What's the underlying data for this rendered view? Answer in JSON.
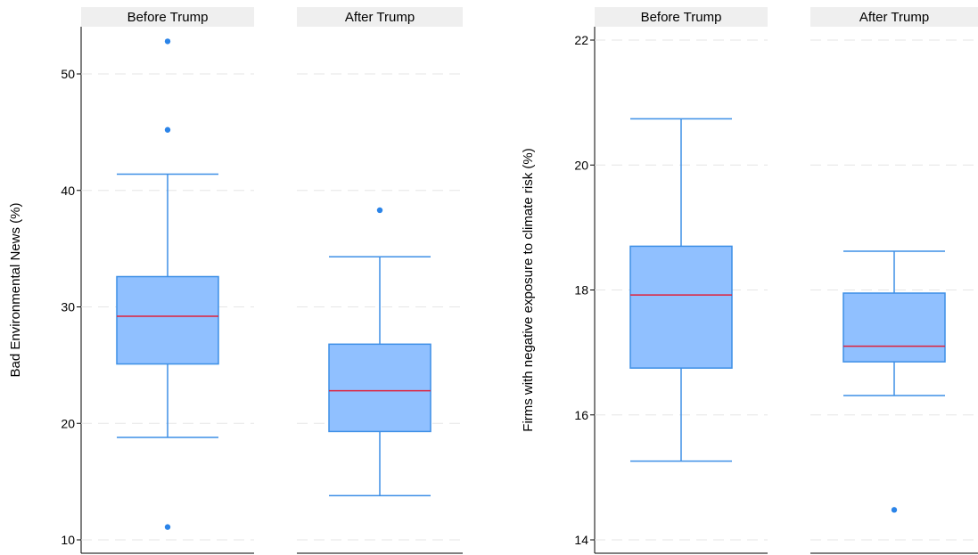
{
  "colors": {
    "box_fill": "#90c0ff",
    "box_stroke": "#3d8fe6",
    "median": "#e0203a",
    "outlier": "#2b84e8",
    "grid": "#e6e6e6",
    "strip": "#efefef"
  },
  "chart_data": [
    {
      "type": "boxplot",
      "ylabel": "Bad Environmental News (%)",
      "ylim": [
        9.5,
        54
      ],
      "yticks": [
        10,
        20,
        30,
        40,
        50
      ],
      "panels": [
        {
          "label": "Before Trump",
          "whisker_low": 18.8,
          "q1": 25.1,
          "median": 29.2,
          "q3": 32.6,
          "whisker_high": 41.4,
          "outliers": [
            11.1,
            45.2,
            52.8
          ]
        },
        {
          "label": "After Trump",
          "whisker_low": 13.8,
          "q1": 19.3,
          "median": 22.8,
          "q3": 26.8,
          "whisker_high": 34.3,
          "outliers": [
            38.3
          ]
        }
      ]
    },
    {
      "type": "boxplot",
      "ylabel": "Firms with negative exposure to climate risk (%)",
      "ylim": [
        13.8,
        22.2
      ],
      "yticks": [
        14,
        16,
        18,
        20,
        22
      ],
      "panels": [
        {
          "label": "Before Trump",
          "whisker_low": 15.26,
          "q1": 16.75,
          "median": 17.92,
          "q3": 18.7,
          "whisker_high": 20.74,
          "outliers": []
        },
        {
          "label": "After Trump",
          "whisker_low": 16.31,
          "q1": 16.85,
          "median": 17.1,
          "q3": 17.95,
          "whisker_high": 18.62,
          "outliers": [
            14.48
          ]
        }
      ]
    }
  ]
}
